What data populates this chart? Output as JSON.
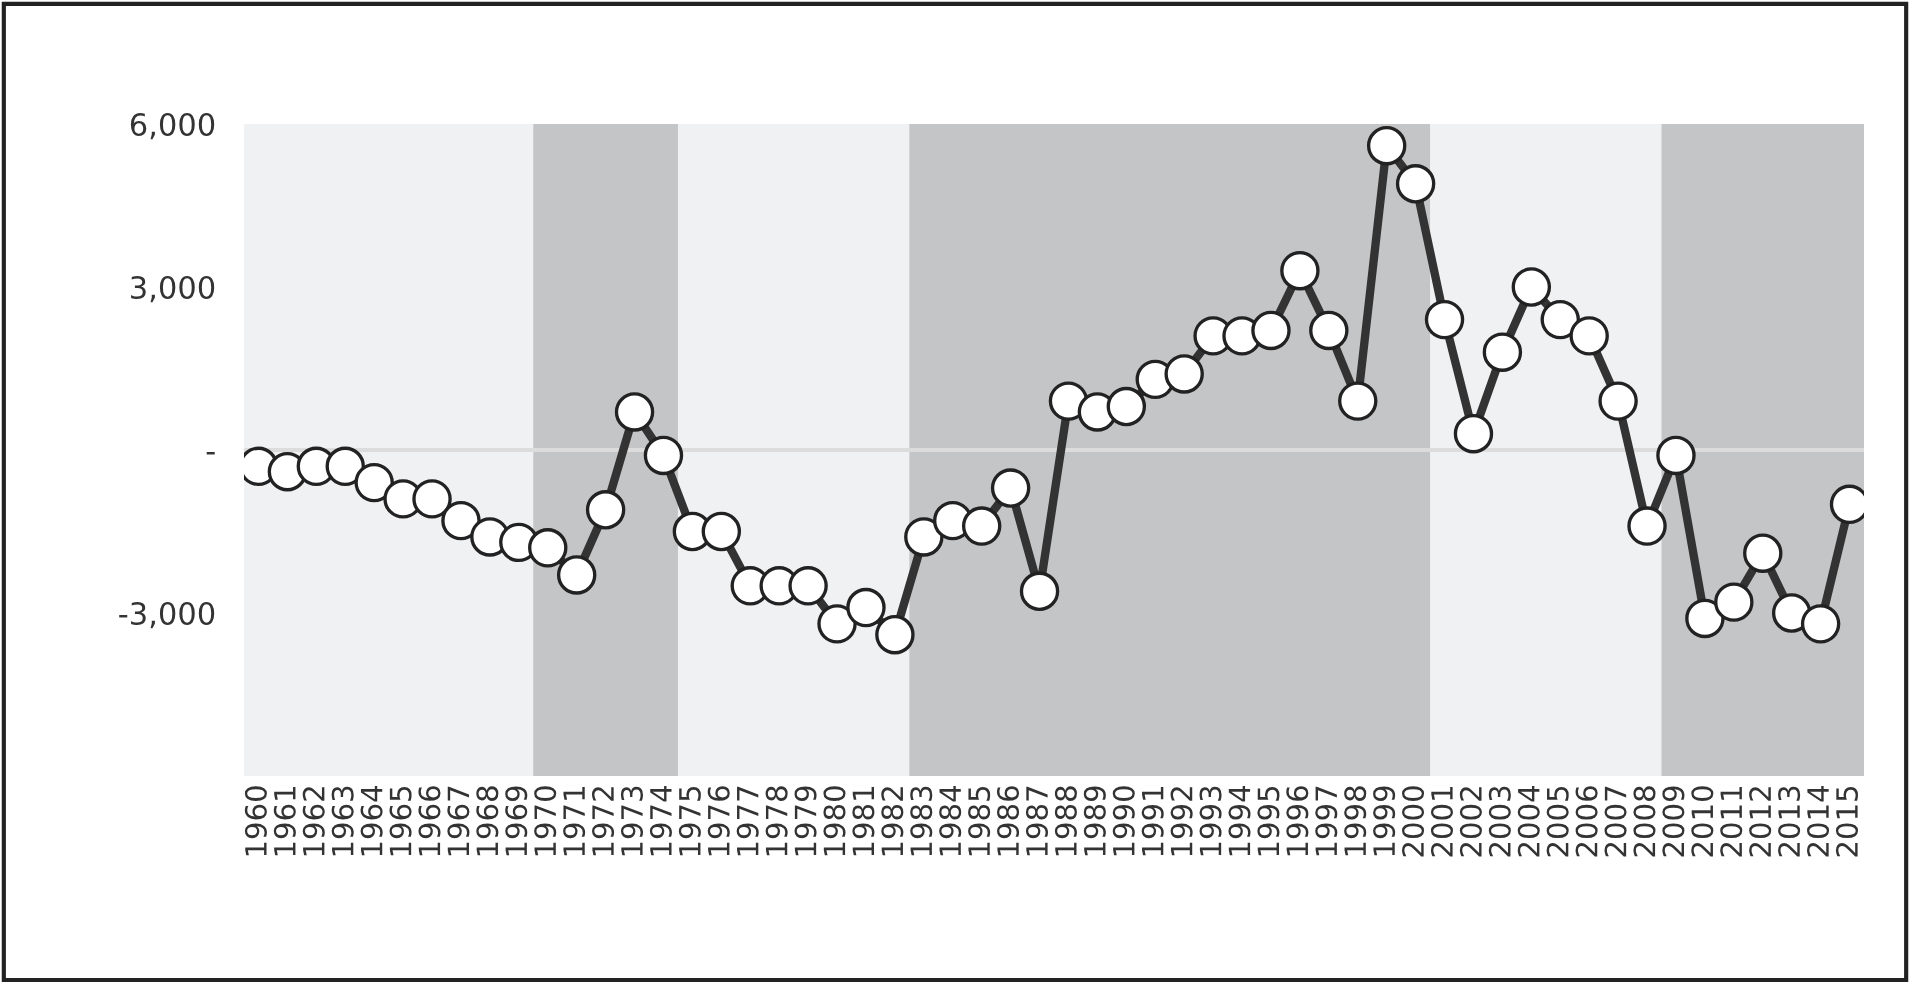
{
  "chart_data": {
    "type": "line",
    "categories": [
      "1960",
      "1961",
      "1962",
      "1963",
      "1964",
      "1965",
      "1966",
      "1967",
      "1968",
      "1969",
      "1970",
      "1971",
      "1972",
      "1973",
      "1974",
      "1975",
      "1976",
      "1977",
      "1978",
      "1979",
      "1980",
      "1981",
      "1982",
      "1983",
      "1984",
      "1985",
      "1986",
      "1987",
      "1988",
      "1989",
      "1990",
      "1991",
      "1992",
      "1993",
      "1994",
      "1995",
      "1996",
      "1997",
      "1998",
      "1999",
      "2000",
      "2001",
      "2002",
      "2003",
      "2004",
      "2005",
      "2006",
      "2007",
      "2008",
      "2009",
      "2010",
      "2011",
      "2012",
      "2013",
      "2014",
      "2015"
    ],
    "series": [
      {
        "color": "#333333",
        "values": [
          -300,
          -400,
          -300,
          -300,
          -600,
          -900,
          -900,
          -1300,
          -1600,
          -1700,
          -1800,
          -2300,
          -1100,
          700,
          -100,
          -1500,
          -1500,
          -2500,
          -2500,
          -2500,
          -3200,
          -2900,
          -3400,
          -1600,
          -1300,
          -1400,
          -700,
          -2600,
          900,
          700,
          800,
          1300,
          1400,
          2100,
          2100,
          2200,
          3300,
          2200,
          900,
          5600,
          4900,
          2400,
          300,
          1800,
          3000,
          2400,
          2100,
          900,
          -1400,
          -100,
          -3100,
          -2800,
          -1900,
          -3000,
          -3200,
          -1000
        ]
      }
    ],
    "ylim": [
      -6000,
      6000
    ],
    "yticks": [
      {
        "value": 6000,
        "label": "6,000"
      },
      {
        "value": 3000,
        "label": "3,000"
      },
      {
        "value": 0,
        "label": "-"
      },
      {
        "value": -3000,
        "label": "-3,000"
      }
    ],
    "grid": false,
    "marker": "circle",
    "line_style": "solid",
    "ref_lines": [
      {
        "axis": "y",
        "value": 0,
        "color": "#dcdcdc"
      }
    ],
    "bands": [
      {
        "axis": "x",
        "from": "1970",
        "to": "1974",
        "color": "#c4c5c7"
      },
      {
        "axis": "x",
        "from": "1983",
        "to": "2000",
        "color": "#c4c5c7"
      },
      {
        "axis": "x",
        "from": "2009",
        "to": "2015",
        "color": "#c4c5c7"
      }
    ]
  }
}
